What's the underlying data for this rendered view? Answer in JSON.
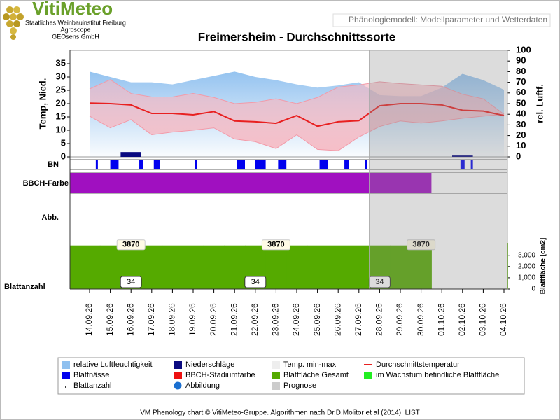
{
  "header": {
    "logo": "VitiMeteo",
    "institutes": [
      "Staatliches Weinbauinstitut Freiburg",
      "Agroscope",
      "GEOsens GmbH"
    ],
    "top_right": "Phänologiemodell: Modellparameter und Wetterdaten"
  },
  "chart_data": {
    "type": "line",
    "title": "Freimersheim - Durchschnittssorte",
    "x": [
      "14.09.26",
      "15.09.26",
      "16.09.26",
      "17.09.26",
      "18.09.26",
      "19.09.26",
      "20.09.26",
      "21.09.26",
      "22.09.26",
      "23.09.26",
      "24.09.26",
      "25.09.26",
      "26.09.26",
      "27.09.26",
      "28.09.26",
      "29.09.26",
      "30.09.26",
      "01.10.26",
      "02.10.26",
      "03.10.26",
      "04.10.26"
    ],
    "ylabel": "Temp, Nied.",
    "y2label": "rel. Luftf.",
    "ylim": [
      0,
      40
    ],
    "yticks": [
      0,
      5,
      10,
      15,
      20,
      25,
      30,
      35
    ],
    "y2lim": [
      0,
      100
    ],
    "y2ticks": [
      0,
      10,
      20,
      30,
      40,
      50,
      60,
      70,
      80,
      90,
      100
    ],
    "forecast_start": "28.09.26",
    "series": [
      {
        "name": "relative Luftfeuchtigkeit",
        "kind": "area",
        "axis": "y2",
        "color": "#8fc0ef",
        "values": [
          80,
          75,
          70,
          70,
          68,
          72,
          76,
          80,
          75,
          72,
          68,
          65,
          67,
          70,
          58,
          57,
          57,
          65,
          78,
          72,
          63
        ]
      },
      {
        "name": "Niederschläge",
        "kind": "bar",
        "color": "#0a0a80",
        "values": [
          0,
          0,
          1.8,
          0,
          0,
          0,
          0,
          0,
          0,
          0,
          0,
          0,
          0,
          0,
          0,
          0,
          0,
          0,
          0.5,
          0,
          0
        ]
      },
      {
        "name": "Temp. max",
        "kind": "band-top",
        "color": "#f39aa8",
        "values": [
          25.5,
          29,
          23.8,
          22.5,
          22.5,
          23.8,
          22.3,
          20,
          20.5,
          21.8,
          20,
          22.3,
          26.2,
          27,
          28.2,
          27.5,
          27,
          26.5,
          23.5,
          21.8,
          16
        ]
      },
      {
        "name": "Temp. min",
        "kind": "band-bottom",
        "color": "#f39aa8",
        "values": [
          15.3,
          10.9,
          14,
          8.3,
          9.3,
          10,
          10.9,
          6.7,
          5.7,
          3.1,
          8.3,
          2.8,
          2.3,
          7.5,
          11.4,
          13.5,
          12.7,
          13.5,
          14.5,
          15.3,
          16
        ]
      },
      {
        "name": "Durchschnittstemperatur",
        "kind": "line",
        "color": "#e82020",
        "values": [
          20.2,
          20.0,
          19.5,
          16.3,
          16.3,
          15.8,
          17.0,
          13.5,
          13.2,
          12.6,
          15.5,
          11.5,
          13.2,
          13.6,
          19.2,
          20.0,
          20.0,
          19.5,
          17.5,
          17.2,
          15.5
        ]
      }
    ],
    "bn": {
      "label": "BN",
      "color": "#0000ee",
      "periods": [
        [
          0.3,
          0.4
        ],
        [
          1.0,
          1.4
        ],
        [
          2.4,
          2.6
        ],
        [
          3.1,
          3.4
        ],
        [
          5.1,
          5.2
        ],
        [
          7.1,
          7.5
        ],
        [
          8.0,
          8.5
        ],
        [
          9.1,
          9.5
        ],
        [
          11.1,
          11.5
        ],
        [
          12.3,
          12.5
        ],
        [
          13.3,
          13.4
        ],
        [
          17.9,
          18.1
        ],
        [
          18.4,
          18.5
        ]
      ]
    },
    "bbch": {
      "label": "BBCH-Farbe",
      "color": "#a010c0"
    },
    "abb": {
      "label": "Abb."
    },
    "leaf": {
      "axis_label": "Blattfläche [cm2]",
      "ylim": [
        0,
        4100
      ],
      "yticks": [
        0,
        {
          "value": 1000,
          "label": "1,000"
        },
        {
          "value": 2000,
          "label": "2,000"
        },
        {
          "value": 3000,
          "label": "3,000"
        }
      ],
      "color": "#55aa00",
      "values": [
        3870,
        3870,
        3870,
        3870,
        3870,
        3870,
        3870,
        3870,
        3870,
        3870,
        3870,
        3870,
        3870,
        3870,
        3870,
        3870,
        3870
      ]
    },
    "leaf_count": {
      "label": "Blattanzahl",
      "values": [
        34,
        34,
        34,
        34,
        34,
        34,
        34,
        34,
        34,
        34,
        34,
        34,
        34,
        34,
        34,
        34,
        34
      ]
    }
  },
  "legend": [
    {
      "name": "relative Luftfeuchtigkeit",
      "color": "#8fc0ef",
      "marker": "box"
    },
    {
      "name": "Blattnässe",
      "color": "#0000ee",
      "marker": "box"
    },
    {
      "name": "Blattanzahl",
      "color": "#000000",
      "marker": "dot"
    },
    {
      "name": "Niederschläge",
      "color": "#0a0a80",
      "marker": "box"
    },
    {
      "name": "BBCH-Stadiumfarbe",
      "color": "#ee1111",
      "marker": "box"
    },
    {
      "name": "Abbildung",
      "color": "#1a6fd0",
      "marker": "circle"
    },
    {
      "name": "Temp. min-max",
      "color": "#eeeeee",
      "marker": "box"
    },
    {
      "name": "Blattfläche Gesamt",
      "color": "#55aa00",
      "marker": "box"
    },
    {
      "name": "Prognose",
      "color": "#cccccc",
      "marker": "box"
    },
    {
      "name": "Durchschnittstemperatur",
      "color": "#e82020",
      "marker": "line"
    },
    {
      "name": "im Wachstum befindliche Blattfläche",
      "color": "#22ee22",
      "marker": "box"
    }
  ],
  "footer": "VM Phenology chart © VitiMeteo-Gruppe. Algorithmen nach Dr.D.Molitor et al (2014), LIST"
}
